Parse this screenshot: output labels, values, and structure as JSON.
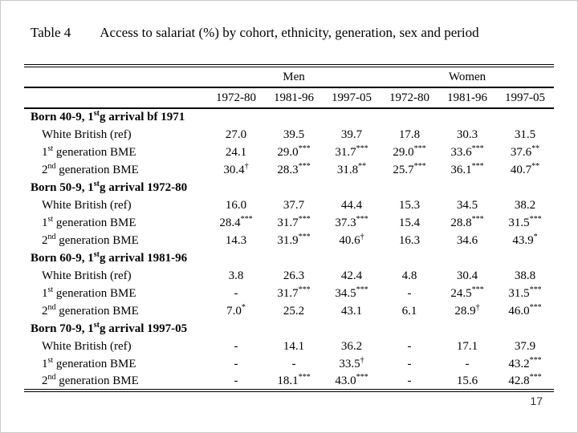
{
  "page_number": "17",
  "table": {
    "label": "Table 4",
    "title": "Access to salariat (%) by cohort, ethnicity, generation, sex and period",
    "group_headers": [
      "Men",
      "Women"
    ],
    "period_headers": [
      "1972-80",
      "1981-96",
      "1997-05",
      "1972-80",
      "1981-96",
      "1997-05"
    ],
    "sections": [
      {
        "heading": "Born 40-9, 1{st}g arrival bf 1971",
        "rows": [
          [
            "White British (ref)",
            "27.0",
            "39.5",
            "39.7",
            "17.8",
            "30.3",
            "31.5"
          ],
          [
            "1{st} generation BME",
            "24.1",
            "29.0{***}",
            "31.7{***}",
            "29.0{***}",
            "33.6{***}",
            "37.6{**}"
          ],
          [
            "2{nd} generation BME",
            "30.4{†}",
            "28.3{***}",
            "31.8{**}",
            "25.7{***}",
            "36.1{***}",
            "40.7{**}"
          ]
        ]
      },
      {
        "heading": "Born 50-9, 1{st}g arrival 1972-80",
        "rows": [
          [
            "White British (ref)",
            "16.0",
            "37.7",
            "44.4",
            "15.3",
            "34.5",
            "38.2"
          ],
          [
            "1{st} generation BME",
            "28.4{***}",
            "31.7{***}",
            "37.3{***}",
            "15.4",
            "28.8{***}",
            "31.5{***}"
          ],
          [
            "2{nd} generation BME",
            "14.3",
            "31.9{***}",
            "40.6{†}",
            "16.3",
            "34.6",
            "43.9{*}"
          ]
        ]
      },
      {
        "heading": "Born 60-9, 1{st}g arrival 1981-96",
        "rows": [
          [
            "White British (ref)",
            "3.8",
            "26.3",
            "42.4",
            "4.8",
            "30.4",
            "38.8"
          ],
          [
            "1{st} generation BME",
            "-",
            "31.7{***}",
            "34.5{***}",
            "-",
            "24.5{***}",
            "31.5{***}"
          ],
          [
            "2{nd} generation BME",
            "7.0{*}",
            "25.2",
            "43.1",
            "6.1",
            "28.9{†}",
            "46.0{***}"
          ]
        ]
      },
      {
        "heading": "Born 70-9, 1{st}g arrival 1997-05",
        "rows": [
          [
            "White British (ref)",
            "-",
            "14.1",
            "36.2",
            "-",
            "17.1",
            "37.9"
          ],
          [
            "1{st} generation BME",
            "-",
            "-",
            "33.5{†}",
            "-",
            "-",
            "43.2{***}"
          ],
          [
            "2{nd} generation BME",
            "-",
            "18.1{***}",
            "43.0{***}",
            "-",
            "15.6",
            "42.8{***}"
          ]
        ]
      }
    ]
  }
}
